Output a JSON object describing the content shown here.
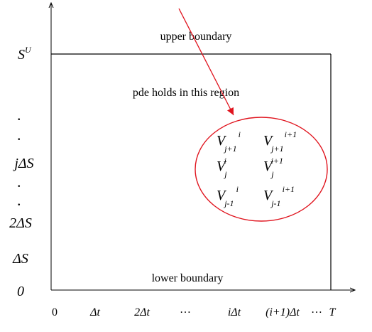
{
  "diagram": {
    "labels": {
      "upper_boundary": "upper boundary",
      "lower_boundary": "lower boundary",
      "region_note": "pde holds in this region"
    },
    "y_axis": {
      "s_upper": {
        "base": "S",
        "sup": "U"
      },
      "dot_1": ".",
      "dot_2": ".",
      "j_delta_s": "jΔS",
      "dot_3": ".",
      "dot_4": ".",
      "two_delta_s": "2ΔS",
      "delta_s": "ΔS",
      "zero": "0"
    },
    "x_axis": {
      "zero": "0",
      "delta_t": "Δt",
      "two_delta_t": "2Δt",
      "ellipsis_1": "…",
      "i_delta_t": "iΔt",
      "i_plus_1_delta_t": "(i+1)Δt",
      "ellipsis_2": "…",
      "t_end": "T"
    },
    "stencil": {
      "v_symbol": "V",
      "nodes": [
        {
          "sub": "j+1",
          "sup": "i"
        },
        {
          "sub": "j+1",
          "sup": "i+1"
        },
        {
          "sub": "j",
          "sup": "i"
        },
        {
          "sub": "j",
          "sup": "i+1"
        },
        {
          "sub": "j-1",
          "sup": "i"
        },
        {
          "sub": "j-1",
          "sup": "i+1"
        }
      ]
    },
    "colors": {
      "axis": "#000000",
      "boundary": "#000000",
      "highlight": "#e0141e",
      "arrow": "#e0141e"
    }
  }
}
